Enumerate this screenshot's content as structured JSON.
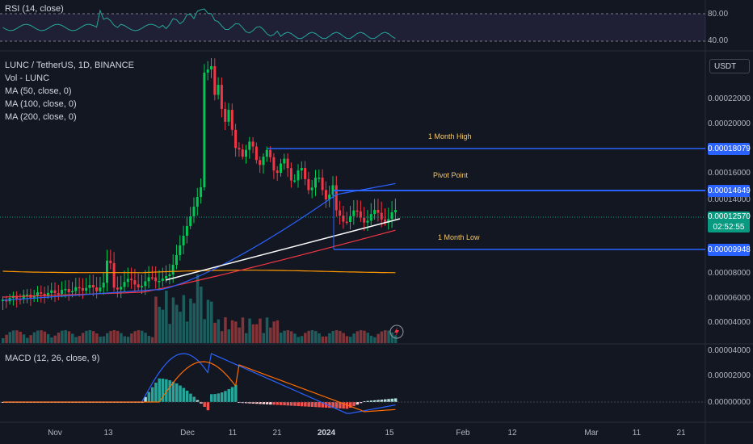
{
  "chart_data": {
    "type": "candlestick",
    "symbol_line": "LUNC / TetherUS, 1D, BINANCE",
    "indicators": [
      "Vol - LUNC",
      "MA (50, close, 0)",
      "MA (100, close, 0)",
      "MA (200, close, 0)"
    ],
    "rsi_label": "RSI (14, close)",
    "rsi_ticks": [
      "80.00",
      "40.00"
    ],
    "macd_label": "MACD (12, 26, close, 9)",
    "currency": "USDT",
    "price_ticks": [
      "0.00022000",
      "0.00020000",
      "0.00016000",
      "0.00014000",
      "0.00008000",
      "0.00006000",
      "0.00004000"
    ],
    "macd_ticks": [
      "0.00004000",
      "0.00002000",
      "0.00000000"
    ],
    "x_labels": [
      "Nov",
      "13",
      "Dec",
      "11",
      "21",
      "2024",
      "15",
      "Feb",
      "12",
      "Mar",
      "11",
      "21"
    ],
    "levels": [
      {
        "name": "1 Month High",
        "value": "0.00018079"
      },
      {
        "name": "Pivot Point",
        "value": "0.00014649"
      },
      {
        "name": "1 Month Low",
        "value": "0.00009948"
      }
    ],
    "last_price": "0.00012570",
    "countdown": "02:52:55",
    "ma_colors": {
      "ma50": "#2962ff",
      "ma100": "#f23645",
      "ma200": "#ff9800"
    },
    "up_color": "#00c853",
    "down_color": "#f23645"
  }
}
